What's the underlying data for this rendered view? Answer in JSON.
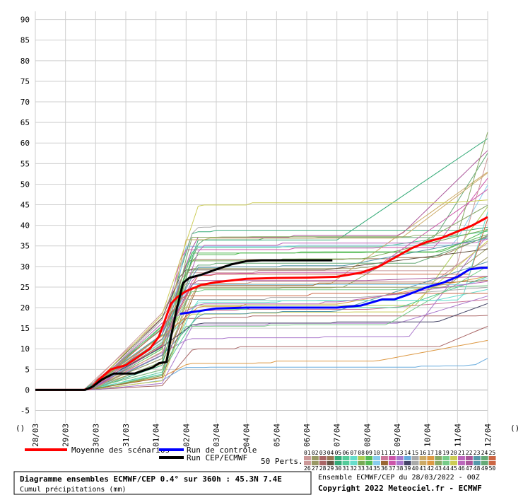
{
  "chart_data": {
    "type": "line",
    "ylim": [
      -8,
      92
    ],
    "yticks": [
      -5,
      0,
      5,
      10,
      15,
      20,
      25,
      30,
      35,
      40,
      45,
      50,
      55,
      60,
      65,
      70,
      75,
      80,
      85,
      90
    ],
    "ytick_labels": [
      "-5",
      "0",
      "5",
      "10",
      "15",
      "20",
      "25",
      "30",
      "35",
      "40",
      "45",
      "50",
      "55",
      "60",
      "65",
      "70",
      "75",
      "80",
      "85",
      "90"
    ],
    "x_unit_label": "()",
    "y_unit_label": "()",
    "xlim": [
      0,
      15
    ],
    "xticks": [
      0,
      1,
      2,
      3,
      4,
      5,
      6,
      7,
      8,
      9,
      10,
      11,
      12,
      13,
      14,
      15
    ],
    "xtick_labels": [
      "28/03",
      "29/03",
      "30/03",
      "31/03",
      "01/04",
      "02/04",
      "03/04",
      "04/04",
      "05/04",
      "06/04",
      "07/04",
      "08/04",
      "09/04",
      "10/04",
      "11/04",
      "12/04"
    ],
    "series": [
      {
        "name": "Moyenne des scénarios",
        "color": "#ff0000",
        "width": 3,
        "x": [
          0,
          1.6,
          1.85,
          2.1,
          2.5,
          3.0,
          3.4,
          3.8,
          4.1,
          4.3,
          4.5,
          4.7,
          5.0,
          5.5,
          6.0,
          7.0,
          8.0,
          9.0,
          10.0,
          10.8,
          11.4,
          12.0,
          12.5,
          13.0,
          13.5,
          14.0,
          14.5,
          15.0
        ],
        "y": [
          0,
          0,
          0.5,
          2.5,
          5,
          6,
          8,
          10,
          13,
          17,
          21,
          22.5,
          24,
          25.5,
          26.2,
          27,
          27.2,
          27.3,
          27.5,
          28.5,
          30,
          32.5,
          34.5,
          36,
          37,
          38.5,
          40,
          42
        ]
      },
      {
        "name": "Run de contrôle",
        "color": "#0000ff",
        "width": 3,
        "x": [
          4.8,
          5.0,
          6.0,
          7.0,
          8.0,
          9.0,
          10.0,
          10.8,
          11.5,
          11.9,
          12.3,
          13.0,
          13.5,
          14.0,
          14.4,
          14.8,
          15.0
        ],
        "y": [
          18.5,
          18.7,
          19.8,
          20,
          20,
          20,
          20,
          20.5,
          22,
          22,
          23,
          25,
          26,
          27.5,
          29.3,
          29.7,
          29.7
        ]
      },
      {
        "name": "Run CEP/ECMWF",
        "color": "#000000",
        "width": 3,
        "x": [
          0,
          1.65,
          1.9,
          2.2,
          2.6,
          3.0,
          3.3,
          3.7,
          3.9,
          4.1,
          4.35,
          4.5,
          4.7,
          4.9,
          5.1,
          5.5,
          6.0,
          6.5,
          7.0,
          7.5,
          8.0,
          8.5,
          9.0,
          9.5,
          9.85
        ],
        "y": [
          0,
          0,
          0.8,
          2.5,
          4,
          4,
          4,
          5,
          5.5,
          6.5,
          6.8,
          13,
          20,
          26,
          27.2,
          28,
          29.3,
          30.5,
          31.3,
          31.5,
          31.5,
          31.5,
          31.5,
          31.5,
          31.5
        ]
      }
    ],
    "perturbations_count": 50
  },
  "legend": {
    "mean_label": "Moyenne des scénarios",
    "mean_color": "#ff0000",
    "control_label": "Run de contrôle",
    "control_color": "#0000ff",
    "cep_label": "Run CEP/ECMWF",
    "cep_color": "#000000",
    "perts_label": "50 Perts.",
    "perts_top": [
      "01",
      "02",
      "03",
      "04",
      "05",
      "06",
      "07",
      "08",
      "09",
      "10",
      "11",
      "12",
      "13",
      "14",
      "15",
      "16",
      "17",
      "18",
      "19",
      "20",
      "21",
      "22",
      "23",
      "24",
      "25"
    ],
    "perts_bottom": [
      "26",
      "27",
      "28",
      "29",
      "30",
      "31",
      "32",
      "33",
      "34",
      "35",
      "36",
      "37",
      "38",
      "39",
      "40",
      "41",
      "42",
      "43",
      "44",
      "45",
      "46",
      "47",
      "48",
      "49",
      "50"
    ],
    "swatch_colors": [
      "#cc9999",
      "#999966",
      "#aa6666",
      "#997755",
      "#33aa77",
      "#55cc99",
      "#66ddcc",
      "#aacc55",
      "#55bb55",
      "#88ccee",
      "#cc7799",
      "#cc55aa",
      "#aa77cc",
      "#66aadd",
      "#aaaaaa",
      "#ccaa66",
      "#dd9944",
      "#88aa66",
      "#77cc88",
      "#cccc55",
      "#bb66bb",
      "#aa5599",
      "#5599aa",
      "#66aa77",
      "#cc6644",
      "#cc9999",
      "#999966",
      "#aa6666",
      "#665544",
      "#33aa77",
      "#55cc99",
      "#66ddcc",
      "#77aa55",
      "#55bb55",
      "#88ccee",
      "#996633",
      "#cc55aa",
      "#aa77cc",
      "#444466",
      "#aaaaaa",
      "#ccaa66",
      "#dd9944",
      "#88aa66",
      "#77cc88",
      "#cccc55",
      "#bb66bb",
      "#aa5599",
      "#5599aa",
      "#66aa77",
      "#cc6644"
    ]
  },
  "info_box": {
    "title": "Diagramme ensembles ECMWF/CEP 0.4° sur 360h : 45.3N 7.4E",
    "subtitle": "Cumul précipitations (mm)"
  },
  "footer": {
    "ensemble_label": "Ensemble ECMWF/CEP du 28/03/2022 - 00Z",
    "copyright": "Copyright 2022 Meteociel.fr - ECMWF"
  }
}
